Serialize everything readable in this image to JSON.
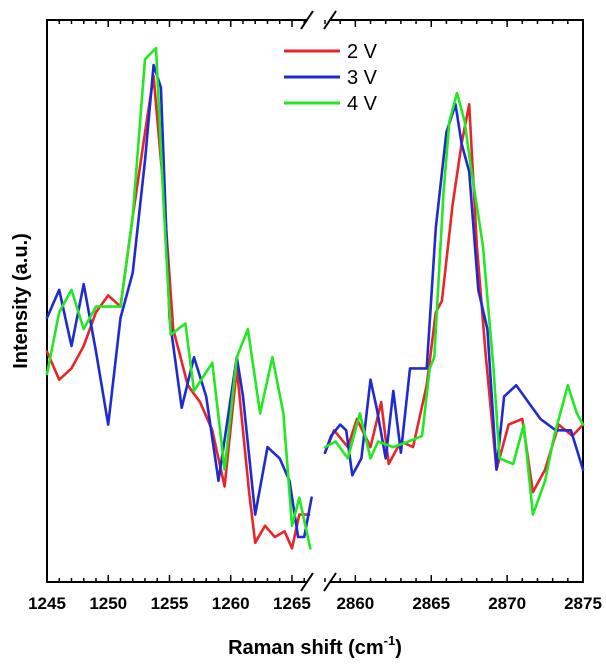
{
  "chart_data": {
    "type": "line",
    "title": "",
    "xlabel": "Raman shift (cm",
    "xlabel_sup": "-1",
    "xlabel_close": ")",
    "ylabel": "Intensity (a.u.)",
    "y_ticks_shown": false,
    "grid": false,
    "legend_position": "top-center",
    "axis_break": true,
    "segments": [
      {
        "xlim": [
          1245,
          1266.8
        ],
        "ticks": [
          1245,
          1250,
          1255,
          1260,
          1265
        ]
      },
      {
        "xlim": [
          2858,
          2875
        ],
        "ticks": [
          2860,
          2865,
          2870,
          2875
        ]
      }
    ],
    "ylim": [
      0,
      100
    ],
    "series": [
      {
        "name": "2 V",
        "color": "#e8262a",
        "segments": [
          [
            [
              1245,
              41
            ],
            [
              1246,
              36
            ],
            [
              1247,
              38
            ],
            [
              1248,
              42
            ],
            [
              1249,
              48
            ],
            [
              1250,
              51
            ],
            [
              1251,
              49
            ],
            [
              1252,
              65
            ],
            [
              1253,
              80
            ],
            [
              1253.7,
              90
            ],
            [
              1254.5,
              70
            ],
            [
              1255.3,
              45
            ],
            [
              1256.5,
              35
            ],
            [
              1257.5,
              32
            ],
            [
              1258.5,
              27
            ],
            [
              1259.5,
              17
            ],
            [
              1260.5,
              38
            ],
            [
              1261.5,
              16
            ],
            [
              1262,
              7
            ],
            [
              1262.8,
              10
            ],
            [
              1263.6,
              8
            ],
            [
              1264.4,
              9
            ],
            [
              1265,
              6
            ],
            [
              1265.6,
              12
            ],
            [
              1266.4,
              12
            ]
          ],
          [
            [
              2858,
              23
            ],
            [
              2858.6,
              27
            ],
            [
              2859.5,
              24
            ],
            [
              2860.1,
              29
            ],
            [
              2861,
              24
            ],
            [
              2861.7,
              32
            ],
            [
              2862.2,
              21
            ],
            [
              2863,
              25
            ],
            [
              2863.8,
              24
            ],
            [
              2864.7,
              35
            ],
            [
              2865.3,
              48
            ],
            [
              2865.7,
              50
            ],
            [
              2866.4,
              67
            ],
            [
              2867,
              78
            ],
            [
              2867.5,
              85
            ],
            [
              2868,
              60
            ],
            [
              2868.6,
              40
            ],
            [
              2869.3,
              20
            ],
            [
              2870.1,
              28
            ],
            [
              2871,
              29
            ],
            [
              2871.7,
              16
            ],
            [
              2872.5,
              20
            ],
            [
              2873.4,
              28
            ],
            [
              2874.3,
              26
            ],
            [
              2875,
              28
            ]
          ]
        ]
      },
      {
        "name": "3 V",
        "color": "#1f2bd0",
        "segments": [
          [
            [
              1245,
              47
            ],
            [
              1246,
              52
            ],
            [
              1247,
              42
            ],
            [
              1248,
              53
            ],
            [
              1249,
              41
            ],
            [
              1250,
              28
            ],
            [
              1251,
              47
            ],
            [
              1252,
              55
            ],
            [
              1253,
              75
            ],
            [
              1253.7,
              92
            ],
            [
              1254.3,
              88
            ],
            [
              1255,
              47
            ],
            [
              1256,
              31
            ],
            [
              1257,
              40
            ],
            [
              1258,
              33
            ],
            [
              1259,
              18
            ],
            [
              1260.5,
              40
            ],
            [
              1261,
              33
            ],
            [
              1262,
              12
            ],
            [
              1263,
              24
            ],
            [
              1264,
              22
            ],
            [
              1264.8,
              18
            ],
            [
              1265.5,
              8
            ],
            [
              1266,
              8
            ],
            [
              1266.6,
              15
            ]
          ],
          [
            [
              2858,
              23
            ],
            [
              2858.4,
              26
            ],
            [
              2859,
              28
            ],
            [
              2859.4,
              27
            ],
            [
              2859.8,
              19
            ],
            [
              2860.4,
              22
            ],
            [
              2861,
              36
            ],
            [
              2861.4,
              31
            ],
            [
              2862,
              22
            ],
            [
              2862.5,
              34
            ],
            [
              2863,
              23
            ],
            [
              2863.6,
              38
            ],
            [
              2864.2,
              38
            ],
            [
              2864.7,
              38
            ],
            [
              2865.3,
              63
            ],
            [
              2866,
              80
            ],
            [
              2866.6,
              85
            ],
            [
              2867,
              78
            ],
            [
              2867.5,
              73
            ],
            [
              2868.1,
              52
            ],
            [
              2868.7,
              45
            ],
            [
              2869.3,
              20
            ],
            [
              2869.8,
              33
            ],
            [
              2870.6,
              35
            ],
            [
              2871.4,
              32
            ],
            [
              2872.2,
              29
            ],
            [
              2873.2,
              27
            ],
            [
              2874.2,
              27
            ],
            [
              2875,
              20
            ]
          ]
        ]
      },
      {
        "name": "4 V",
        "color": "#22e822",
        "segments": [
          [
            [
              1245,
              37
            ],
            [
              1246,
              48
            ],
            [
              1247,
              52
            ],
            [
              1248,
              45
            ],
            [
              1249,
              49
            ],
            [
              1250,
              49
            ],
            [
              1251,
              49
            ],
            [
              1252,
              65
            ],
            [
              1253,
              93
            ],
            [
              1253.9,
              95
            ],
            [
              1254.5,
              68
            ],
            [
              1255.1,
              44
            ],
            [
              1256.3,
              46
            ],
            [
              1257,
              34
            ],
            [
              1258.5,
              39
            ],
            [
              1259.5,
              20
            ],
            [
              1260.5,
              40
            ],
            [
              1261.4,
              45
            ],
            [
              1262.4,
              30
            ],
            [
              1263.4,
              40
            ],
            [
              1264.3,
              30
            ],
            [
              1265,
              10
            ],
            [
              1265.6,
              15
            ],
            [
              1266.5,
              6
            ]
          ],
          [
            [
              2858,
              24
            ],
            [
              2858.7,
              25
            ],
            [
              2859.5,
              22
            ],
            [
              2860.3,
              30
            ],
            [
              2861,
              22
            ],
            [
              2861.5,
              25
            ],
            [
              2862.5,
              24
            ],
            [
              2863.5,
              25
            ],
            [
              2864.4,
              26
            ],
            [
              2864.9,
              38
            ],
            [
              2865.2,
              40
            ],
            [
              2865.8,
              69
            ],
            [
              2866.2,
              82
            ],
            [
              2866.7,
              87
            ],
            [
              2867.2,
              82
            ],
            [
              2867.6,
              74
            ],
            [
              2868.4,
              60
            ],
            [
              2869.1,
              38
            ],
            [
              2869.5,
              22
            ],
            [
              2870.4,
              21
            ],
            [
              2871.1,
              28
            ],
            [
              2871.7,
              12
            ],
            [
              2872.5,
              18
            ],
            [
              2873.1,
              26
            ],
            [
              2874,
              35
            ],
            [
              2874.6,
              30
            ],
            [
              2875,
              28
            ]
          ]
        ]
      }
    ]
  }
}
